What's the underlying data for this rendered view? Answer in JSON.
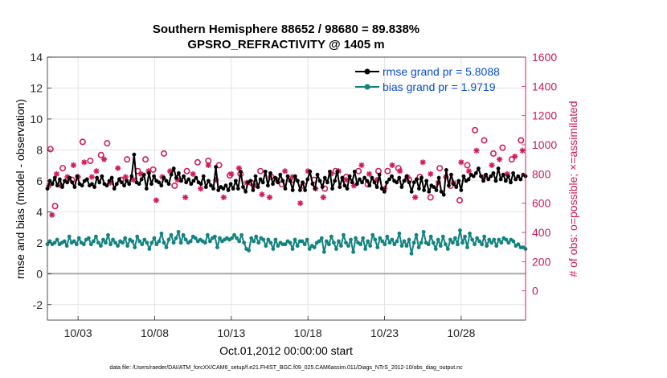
{
  "chart_data": {
    "type": "line",
    "title": "Southern Hemisphere 88652 / 98680 = 89.838%",
    "subtitle": "GPSRO_REFRACTIVITY @ 1405 m",
    "xlabel": "Oct.01,2012 00:00:00 start",
    "ylabel": "rmse and bias (model - observation)",
    "ylabel_right": "# of obs: o=possible; ×=assimilated",
    "footnote": "data file: /Users/raeder/DAI/ATM_forcXX/CAM6_setup/f.e21.FHIST_BGC.f09_025.CAM6assim.011/Diags_NTrS_2012-10/obs_diag_output.nc",
    "xlim": [
      1,
      32.2
    ],
    "ylim": [
      -3,
      14
    ],
    "ylim_right": [
      -200,
      1600
    ],
    "x_ticks": [
      3,
      8,
      13,
      18,
      23,
      28
    ],
    "x_tick_labels": [
      "10/03",
      "10/08",
      "10/13",
      "10/18",
      "10/23",
      "10/28"
    ],
    "y_ticks": [
      -2,
      0,
      2,
      4,
      6,
      8,
      10,
      12,
      14
    ],
    "y_ticks_right": [
      0,
      200,
      400,
      600,
      800,
      1000,
      1200,
      1400,
      1600
    ],
    "zero_line": 0,
    "grid": true,
    "legend_position": "top-right",
    "colors": {
      "rmse": "#000000",
      "bias": "#138380",
      "obs": "#d11c5c",
      "zero_line": "#a8a8a8"
    },
    "series": [
      {
        "name": "rmse grand pr = 5.8088",
        "axis": "left",
        "values": [
          5.5,
          6.0,
          5.8,
          6.2,
          5.7,
          6.1,
          5.6,
          6.0,
          5.9,
          6.2,
          5.9,
          5.6,
          6.3,
          5.8,
          5.7,
          6.0,
          6.1,
          5.7,
          5.8,
          5.6,
          6.2,
          5.9,
          6.3,
          5.8,
          5.7,
          6.0,
          6.2,
          5.5,
          5.8,
          6.1,
          5.9,
          5.7,
          6.0,
          5.8,
          6.3,
          7.7,
          5.9,
          5.8,
          6.1,
          6.4,
          5.5,
          6.5,
          5.8,
          6.3,
          6.0,
          5.9,
          5.7,
          6.2,
          6.0,
          5.8,
          6.4,
          6.8,
          6.2,
          6.5,
          6.0,
          6.3,
          5.9,
          6.1,
          5.8,
          6.0,
          6.2,
          5.9,
          5.8,
          6.3,
          5.6,
          6.0,
          5.7,
          5.5,
          6.9,
          5.4,
          5.6,
          5.5,
          5.7,
          5.4,
          5.8,
          5.5,
          6.0,
          5.5,
          6.6,
          5.6,
          5.3,
          5.9,
          6.0,
          5.4,
          6.3,
          5.6,
          6.1,
          5.9,
          6.6,
          5.7,
          6.5,
          5.8,
          6.2,
          5.9,
          6.4,
          6.0,
          5.5,
          6.3,
          6.0,
          5.4,
          6.3,
          6.0,
          5.4,
          5.9,
          5.4,
          6.1,
          6.6,
          5.8,
          5.5,
          6.4,
          6.0,
          5.6,
          6.2,
          5.9,
          6.6,
          5.5,
          6.0,
          6.6,
          5.6,
          6.2,
          5.7,
          5.5,
          6.3,
          5.9,
          6.6,
          5.8,
          6.1,
          5.9,
          6.2,
          6.0,
          5.7,
          6.2,
          5.9,
          5.6,
          6.4,
          5.5,
          5.3,
          5.9,
          6.1,
          6.3,
          6.0,
          5.9,
          6.2,
          5.6,
          6.0,
          6.3,
          5.9,
          5.3,
          5.9,
          6.1,
          5.5,
          6.2,
          5.4,
          6.0,
          5.3,
          5.7,
          5.6,
          5.4,
          6.2,
          5.3,
          5.1,
          6.7,
          5.7,
          6.4,
          5.8,
          5.6,
          6.0,
          5.4,
          6.3,
          6.0,
          6.1,
          6.4,
          6.3,
          6.5,
          6.8,
          6.3,
          6.0,
          6.4,
          6.1,
          6.3,
          6.5,
          6.0,
          6.8,
          6.1,
          6.4,
          6.0,
          6.3,
          5.9,
          6.5,
          6.1,
          6.3,
          6.1,
          6.4,
          6.3
        ]
      },
      {
        "name": "bias grand pr = 1.9719",
        "axis": "left",
        "values": [
          1.9,
          2.1,
          1.9,
          2.0,
          2.2,
          1.9,
          2.0,
          2.1,
          1.8,
          2.4,
          2.0,
          2.1,
          1.9,
          2.3,
          2.0,
          1.9,
          2.2,
          2.3,
          1.9,
          2.1,
          2.4,
          2.0,
          1.8,
          2.2,
          2.0,
          2.5,
          1.9,
          2.2,
          2.0,
          1.8,
          2.1,
          2.0,
          2.3,
          1.8,
          2.2,
          2.1,
          1.7,
          2.4,
          2.1,
          1.9,
          2.2,
          2.0,
          1.6,
          2.0,
          2.3,
          1.9,
          2.1,
          2.6,
          2.0,
          1.7,
          2.2,
          2.5,
          2.0,
          2.3,
          2.7,
          2.0,
          2.5,
          2.2,
          2.0,
          2.1,
          2.4,
          2.3,
          2.1,
          2.2,
          2.1,
          2.0,
          2.5,
          2.1,
          2.3,
          2.4,
          1.7,
          2.3,
          2.1,
          2.2,
          2.3,
          2.2,
          2.3,
          2.5,
          2.3,
          2.1,
          2.5,
          2.0,
          1.6,
          1.5,
          2.3,
          2.1,
          2.4,
          2.0,
          2.3,
          2.2,
          1.8,
          2.2,
          2.0,
          1.6,
          2.2,
          1.8,
          2.0,
          1.9,
          1.9,
          2.1,
          2.0,
          1.6,
          2.2,
          1.8,
          2.1,
          2.1,
          1.9,
          2.2,
          1.6,
          1.8,
          1.7,
          2.0,
          2.1,
          2.3,
          1.4,
          2.1,
          1.9,
          2.4,
          2.0,
          1.6,
          2.1,
          1.8,
          2.5,
          2.0,
          1.8,
          2.2,
          1.4,
          2.3,
          2.0,
          1.9,
          2.3,
          1.6,
          2.1,
          1.8,
          2.5,
          2.2,
          1.7,
          2.3,
          2.1,
          1.9,
          2.4,
          2.0,
          2.2,
          1.9,
          2.1,
          2.6,
          1.8,
          2.1,
          1.8,
          2.2,
          1.3,
          2.0,
          2.5,
          1.7,
          2.0,
          2.7,
          2.0,
          1.9,
          2.4,
          2.0,
          1.6,
          2.2,
          1.8,
          2.4,
          1.9,
          1.6,
          2.2,
          2.0,
          2.3,
          1.9,
          2.8,
          2.0,
          2.4,
          1.7,
          2.6,
          2.2,
          1.9,
          2.3,
          2.1,
          1.9,
          2.4,
          1.8,
          2.2,
          2.0,
          2.2,
          1.8,
          2.2,
          2.0,
          2.3,
          2.2,
          2.0,
          2.2,
          2.1,
          1.8,
          1.9,
          1.7,
          1.7,
          1.6
        ]
      },
      {
        "name": "possible",
        "axis": "right",
        "marker": "o",
        "x": [
          1.2,
          1.5,
          2.0,
          2.6,
          3.3,
          3.8,
          4.5,
          4.9,
          5.8,
          6.2,
          6.9,
          7.4,
          7.9,
          8.6,
          9.3,
          10.1,
          10.8,
          11.5,
          12.2,
          12.9,
          13.6,
          14.3,
          14.9,
          15.6,
          16.3,
          17.0,
          17.7,
          18.4,
          19.1,
          19.8,
          20.5,
          21.3,
          21.9,
          22.6,
          23.2,
          23.9,
          24.6,
          25.3,
          26.0,
          26.6,
          27.3,
          27.9,
          28.4,
          28.9,
          29.5,
          30.1,
          30.7,
          31.3,
          31.9
        ],
        "values": [
          970,
          580,
          840,
          760,
          1020,
          890,
          930,
          1010,
          760,
          900,
          820,
          900,
          830,
          940,
          720,
          820,
          880,
          890,
          860,
          790,
          800,
          740,
          820,
          780,
          730,
          760,
          720,
          760,
          700,
          820,
          780,
          820,
          730,
          820,
          820,
          840,
          760,
          780,
          640,
          840,
          720,
          620,
          860,
          1100,
          1030,
          940,
          980,
          900,
          1030
        ]
      },
      {
        "name": "assimilated",
        "axis": "right",
        "marker": "*",
        "x": [
          1.1,
          1.3,
          1.6,
          1.9,
          2.3,
          2.7,
          3.0,
          3.4,
          3.9,
          4.2,
          4.7,
          5.1,
          5.6,
          6.1,
          6.6,
          7.1,
          7.6,
          8.1,
          8.5,
          9.0,
          9.5,
          10.0,
          10.5,
          11.0,
          11.5,
          12.0,
          12.5,
          13.0,
          13.5,
          14.0,
          14.5,
          15.0,
          15.5,
          16.0,
          16.5,
          17.0,
          17.5,
          18.0,
          18.5,
          19.0,
          19.5,
          20.0,
          20.5,
          21.0,
          21.5,
          22.0,
          22.5,
          23.0,
          23.5,
          24.0,
          24.5,
          25.0,
          25.5,
          26.0,
          26.5,
          27.0,
          27.5,
          28.0,
          28.5,
          29.0,
          29.5,
          30.0,
          30.5,
          31.0,
          31.5,
          32.0
        ],
        "values": [
          720,
          520,
          800,
          720,
          780,
          860,
          780,
          880,
          780,
          820,
          900,
          740,
          840,
          780,
          760,
          800,
          820,
          620,
          780,
          820,
          760,
          640,
          800,
          700,
          860,
          760,
          640,
          800,
          840,
          740,
          720,
          660,
          640,
          760,
          820,
          780,
          600,
          820,
          700,
          640,
          800,
          820,
          760,
          720,
          860,
          800,
          760,
          700,
          860,
          820,
          780,
          640,
          880,
          800,
          740,
          780,
          740,
          880,
          820,
          960,
          780,
          860,
          900,
          800,
          920,
          960
        ]
      }
    ]
  }
}
